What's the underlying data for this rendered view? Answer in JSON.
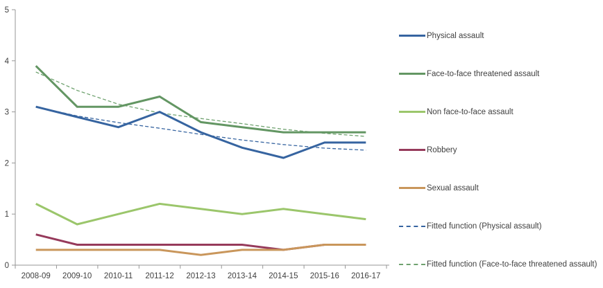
{
  "chart_data": {
    "type": "line",
    "title": "",
    "xlabel": "",
    "ylabel": "",
    "categories": [
      "2008-09",
      "2009-10",
      "2010-11",
      "2011-12",
      "2012-13",
      "2013-14",
      "2014-15",
      "2015-16",
      "2016-17"
    ],
    "ylim": [
      0,
      5
    ],
    "yticks": [
      0,
      1,
      2,
      3,
      4,
      5
    ],
    "grid": false,
    "legend_position": "right",
    "axis_color": "#969696",
    "label_color": "#404040",
    "series": [
      {
        "name": "Physical assault",
        "color": "#3664A0",
        "style": "solid",
        "values": [
          3.1,
          2.9,
          2.7,
          3.0,
          2.6,
          2.3,
          2.1,
          2.4,
          2.4
        ]
      },
      {
        "name": "Face-to-face threatened assault",
        "color": "#639663",
        "style": "solid",
        "values": [
          3.9,
          3.1,
          3.1,
          3.3,
          2.8,
          2.7,
          2.6,
          2.6,
          2.6
        ]
      },
      {
        "name": "Non face-to-face assault",
        "color": "#9BC66B",
        "style": "solid",
        "values": [
          1.2,
          0.8,
          1.0,
          1.2,
          1.1,
          1.0,
          1.1,
          1.0,
          0.9
        ]
      },
      {
        "name": "Robbery",
        "color": "#963A5B",
        "style": "solid",
        "values": [
          0.6,
          0.4,
          0.4,
          0.4,
          0.4,
          0.4,
          0.3,
          0.4,
          0.4
        ]
      },
      {
        "name": "Sexual assault",
        "color": "#C9965B",
        "style": "solid",
        "values": [
          0.3,
          0.3,
          0.3,
          0.3,
          0.2,
          0.3,
          0.3,
          0.4,
          0.4
        ]
      },
      {
        "name": "Fitted function (Physical assault)",
        "color": "#3664A0",
        "style": "dashed",
        "values": [
          3.1,
          2.92,
          2.79,
          2.68,
          2.56,
          2.45,
          2.36,
          2.29,
          2.25
        ]
      },
      {
        "name": "Fitted function (Face-to-face threatened assault)",
        "color": "#6FA26F",
        "style": "dashed",
        "values": [
          3.78,
          3.42,
          3.15,
          2.98,
          2.87,
          2.77,
          2.66,
          2.58,
          2.52
        ]
      }
    ]
  }
}
